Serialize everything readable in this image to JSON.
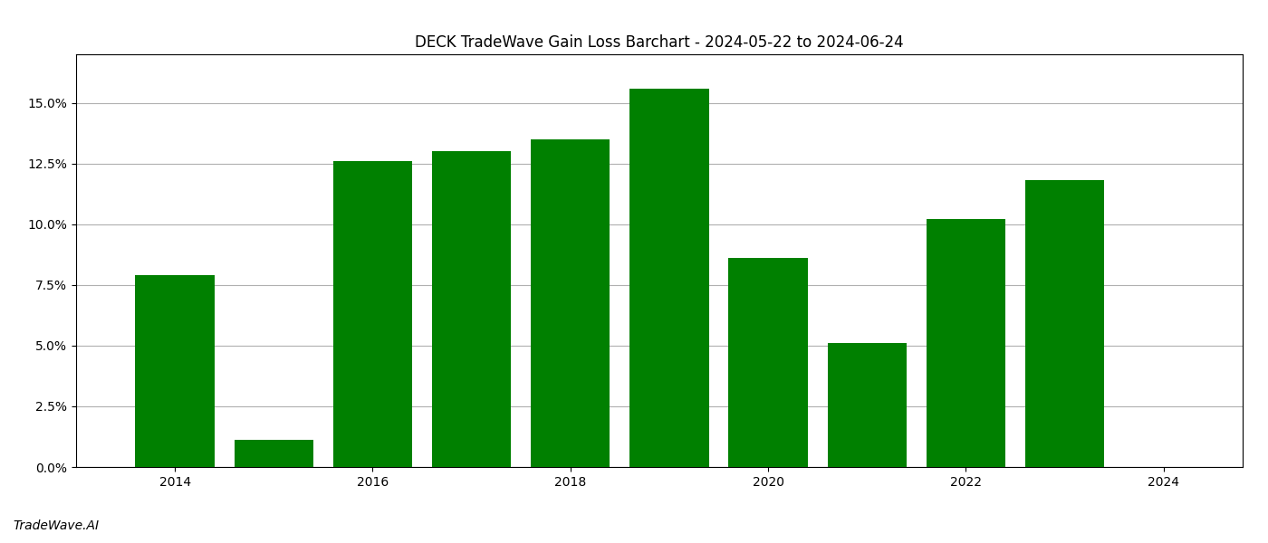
{
  "chart_data": {
    "type": "bar",
    "title": "DECK TradeWave Gain Loss Barchart - 2024-05-22 to 2024-06-24",
    "annotations": [
      "TradeWave.AI"
    ],
    "x": [
      2014,
      2015,
      2016,
      2017,
      2018,
      2019,
      2020,
      2021,
      2022,
      2023
    ],
    "values": [
      0.079,
      0.011,
      0.126,
      0.13,
      0.135,
      0.156,
      0.086,
      0.051,
      0.102,
      0.118
    ],
    "color": "#008000",
    "xlim": [
      2013.0,
      2024.8
    ],
    "xticks": [
      2014,
      2016,
      2018,
      2020,
      2022,
      2024
    ],
    "ylim": [
      0,
      0.17
    ],
    "yticks": [
      {
        "value": 0.0,
        "label": "0.0%"
      },
      {
        "value": 0.025,
        "label": "2.5%"
      },
      {
        "value": 0.05,
        "label": "5.0%"
      },
      {
        "value": 0.075,
        "label": "7.5%"
      },
      {
        "value": 0.1,
        "label": "10.0%"
      },
      {
        "value": 0.125,
        "label": "12.5%"
      },
      {
        "value": 0.15,
        "label": "15.0%"
      }
    ],
    "grid": true
  }
}
